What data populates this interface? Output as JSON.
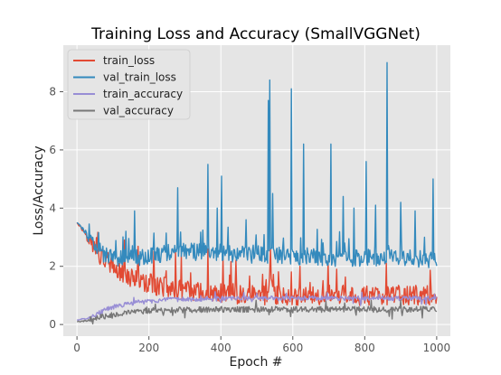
{
  "chart_data": {
    "type": "line",
    "title": "Training Loss and Accuracy (SmallVGGNet)",
    "xlabel": "Epoch #",
    "ylabel": "Loss/Accuracy",
    "xlim": [
      -38,
      1038
    ],
    "ylim": [
      -0.4,
      9.6
    ],
    "xticks": [
      0,
      200,
      400,
      600,
      800,
      1000
    ],
    "yticks": [
      0,
      2,
      4,
      6,
      8
    ],
    "grid": true,
    "background": "#e5e5e5",
    "legend_position": "top-left",
    "series": [
      {
        "name": "train_loss",
        "color": "#e24a33",
        "x": [
          0,
          10,
          20,
          30,
          40,
          50,
          60,
          70,
          80,
          90,
          100,
          120,
          140,
          160,
          180,
          200,
          220,
          240,
          260,
          280,
          300,
          320,
          340,
          360,
          380,
          400,
          420,
          440,
          460,
          480,
          500,
          520,
          540,
          560,
          580,
          600,
          620,
          640,
          660,
          680,
          700,
          720,
          740,
          760,
          780,
          800,
          820,
          840,
          860,
          880,
          900,
          920,
          940,
          960,
          980,
          1000
        ],
        "values": [
          3.5,
          3.35,
          3.2,
          3.0,
          2.8,
          2.6,
          2.45,
          2.3,
          2.2,
          2.1,
          1.95,
          1.8,
          1.7,
          1.55,
          1.45,
          1.4,
          1.35,
          1.3,
          1.25,
          1.2,
          1.15,
          1.15,
          1.1,
          1.1,
          1.1,
          1.05,
          1.05,
          1.05,
          1.0,
          1.0,
          1.0,
          1.0,
          1.0,
          1.0,
          1.0,
          1.0,
          1.0,
          1.0,
          1.0,
          1.0,
          1.0,
          1.0,
          1.0,
          1.0,
          1.0,
          1.0,
          1.0,
          1.0,
          1.0,
          1.0,
          1.0,
          1.0,
          1.0,
          1.0,
          1.0,
          1.0
        ],
        "noise": 0.35,
        "spikes": [
          {
            "x": 538,
            "y": 2.6
          },
          {
            "x": 365,
            "y": 2.6
          },
          {
            "x": 275,
            "y": 2.5
          },
          {
            "x": 860,
            "y": 2.1
          },
          {
            "x": 620,
            "y": 2.0
          }
        ]
      },
      {
        "name": "val_train_loss",
        "color": "#348abd",
        "x": [
          0,
          10,
          20,
          30,
          40,
          50,
          60,
          70,
          80,
          90,
          100,
          120,
          140,
          160,
          180,
          200,
          220,
          240,
          260,
          280,
          300,
          320,
          340,
          360,
          380,
          400,
          420,
          440,
          460,
          480,
          500,
          520,
          540,
          560,
          580,
          600,
          620,
          640,
          660,
          680,
          700,
          720,
          740,
          760,
          780,
          800,
          820,
          840,
          860,
          880,
          900,
          920,
          940,
          960,
          980,
          1000
        ],
        "values": [
          3.5,
          3.4,
          3.25,
          3.05,
          2.85,
          2.7,
          2.55,
          2.45,
          2.4,
          2.35,
          2.3,
          2.3,
          2.3,
          2.3,
          2.3,
          2.35,
          2.4,
          2.45,
          2.5,
          2.55,
          2.55,
          2.5,
          2.5,
          2.5,
          2.5,
          2.5,
          2.45,
          2.4,
          2.4,
          2.4,
          2.4,
          2.4,
          2.4,
          2.4,
          2.35,
          2.35,
          2.35,
          2.35,
          2.3,
          2.3,
          2.3,
          2.3,
          2.3,
          2.3,
          2.3,
          2.3,
          2.3,
          2.3,
          2.3,
          2.3,
          2.3,
          2.3,
          2.25,
          2.25,
          2.25,
          2.25
        ],
        "noise": 0.3,
        "spikes": [
          {
            "x": 537,
            "y": 8.4
          },
          {
            "x": 862,
            "y": 9.0
          },
          {
            "x": 597,
            "y": 8.1
          },
          {
            "x": 532,
            "y": 7.7
          },
          {
            "x": 706,
            "y": 6.2
          },
          {
            "x": 630,
            "y": 6.2
          },
          {
            "x": 805,
            "y": 5.6
          },
          {
            "x": 365,
            "y": 5.5
          },
          {
            "x": 402,
            "y": 5.1
          },
          {
            "x": 990,
            "y": 5.0
          },
          {
            "x": 280,
            "y": 4.7
          },
          {
            "x": 545,
            "y": 4.5
          },
          {
            "x": 740,
            "y": 4.4
          },
          {
            "x": 900,
            "y": 4.2
          },
          {
            "x": 830,
            "y": 4.1
          },
          {
            "x": 770,
            "y": 4.0
          },
          {
            "x": 940,
            "y": 3.9
          },
          {
            "x": 160,
            "y": 3.9
          },
          {
            "x": 390,
            "y": 4.0
          },
          {
            "x": 470,
            "y": 3.6
          }
        ]
      },
      {
        "name": "train_accuracy",
        "color": "#988ed5",
        "x": [
          0,
          10,
          20,
          30,
          40,
          50,
          60,
          70,
          80,
          90,
          100,
          120,
          140,
          160,
          180,
          200,
          220,
          240,
          260,
          280,
          300,
          320,
          340,
          360,
          380,
          400,
          420,
          440,
          460,
          480,
          500,
          520,
          540,
          560,
          580,
          600,
          620,
          640,
          660,
          680,
          700,
          720,
          740,
          760,
          780,
          800,
          820,
          840,
          860,
          880,
          900,
          920,
          940,
          960,
          980,
          1000
        ],
        "values": [
          0.15,
          0.18,
          0.2,
          0.23,
          0.27,
          0.32,
          0.38,
          0.45,
          0.5,
          0.55,
          0.6,
          0.65,
          0.7,
          0.75,
          0.78,
          0.8,
          0.82,
          0.83,
          0.85,
          0.86,
          0.87,
          0.87,
          0.88,
          0.88,
          0.88,
          0.89,
          0.89,
          0.89,
          0.9,
          0.9,
          0.9,
          0.9,
          0.9,
          0.9,
          0.9,
          0.9,
          0.9,
          0.9,
          0.9,
          0.9,
          0.9,
          0.9,
          0.9,
          0.9,
          0.9,
          0.9,
          0.9,
          0.9,
          0.9,
          0.9,
          0.9,
          0.9,
          0.9,
          0.9,
          0.9,
          0.9
        ],
        "noise": 0.08,
        "spikes": []
      },
      {
        "name": "val_accuracy",
        "color": "#777777",
        "x": [
          0,
          10,
          20,
          30,
          40,
          50,
          60,
          70,
          80,
          90,
          100,
          120,
          140,
          160,
          180,
          200,
          220,
          240,
          260,
          280,
          300,
          320,
          340,
          360,
          380,
          400,
          420,
          440,
          460,
          480,
          500,
          520,
          540,
          560,
          580,
          600,
          620,
          640,
          660,
          680,
          700,
          720,
          740,
          760,
          780,
          800,
          820,
          840,
          860,
          880,
          900,
          920,
          940,
          960,
          980,
          1000
        ],
        "values": [
          0.1,
          0.1,
          0.12,
          0.14,
          0.17,
          0.2,
          0.23,
          0.27,
          0.3,
          0.33,
          0.35,
          0.38,
          0.41,
          0.43,
          0.45,
          0.47,
          0.48,
          0.49,
          0.5,
          0.5,
          0.5,
          0.51,
          0.51,
          0.51,
          0.51,
          0.52,
          0.52,
          0.52,
          0.52,
          0.52,
          0.52,
          0.52,
          0.52,
          0.52,
          0.52,
          0.52,
          0.52,
          0.52,
          0.52,
          0.52,
          0.52,
          0.52,
          0.52,
          0.52,
          0.52,
          0.52,
          0.52,
          0.52,
          0.52,
          0.52,
          0.52,
          0.52,
          0.52,
          0.52,
          0.52,
          0.52
        ],
        "noise": 0.1,
        "spikes": []
      }
    ]
  }
}
